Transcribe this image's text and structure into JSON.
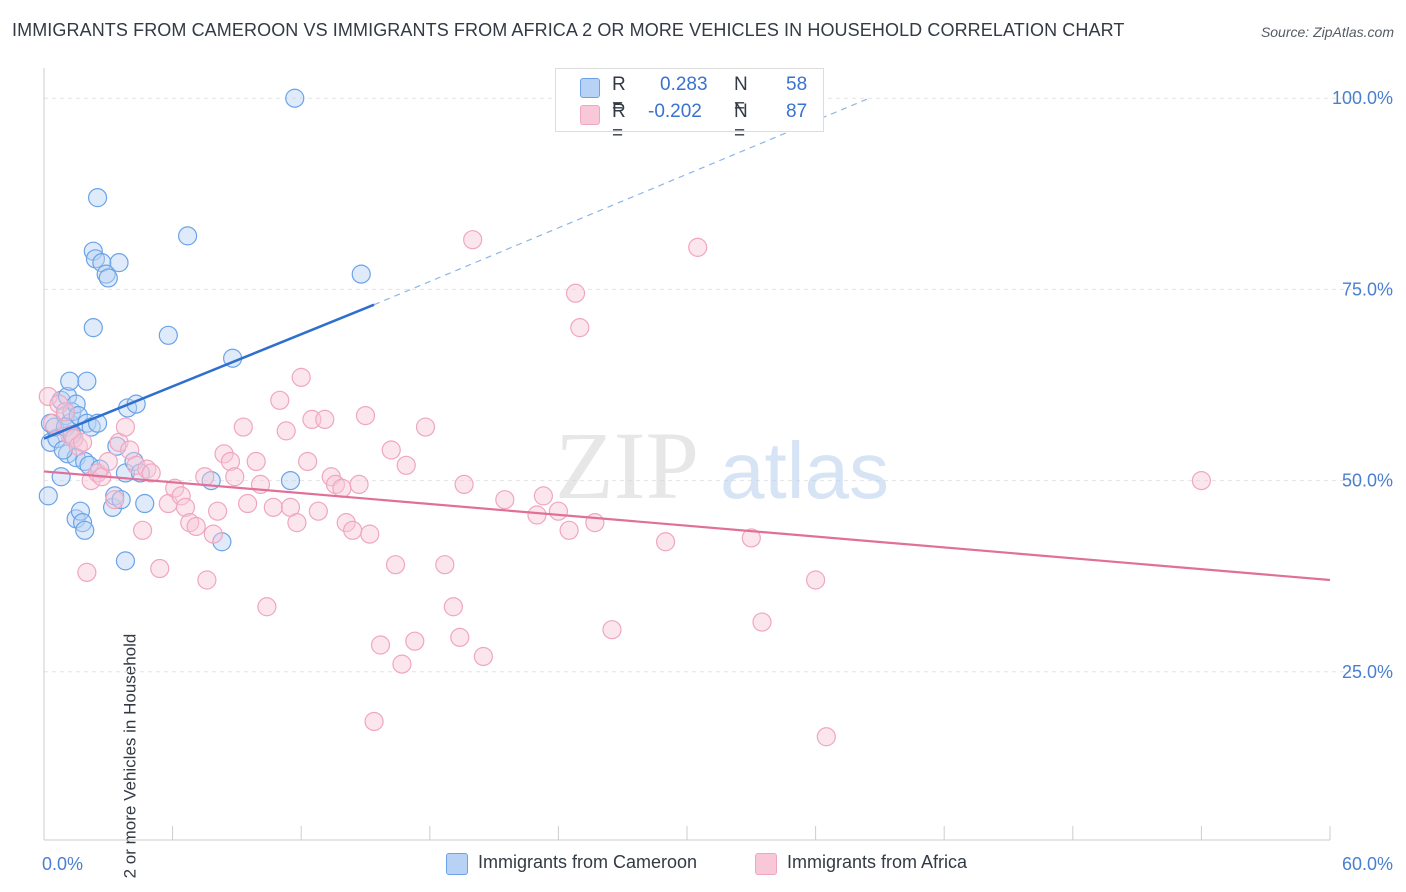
{
  "title": "IMMIGRANTS FROM CAMEROON VS IMMIGRANTS FROM AFRICA 2 OR MORE VEHICLES IN HOUSEHOLD CORRELATION CHART",
  "source": "Source: ZipAtlas.com",
  "watermark": {
    "zip": "ZIP",
    "atlas": "atlas"
  },
  "legend": {
    "rows": [
      {
        "r_label": "R =",
        "r_value": "0.283",
        "n_label": "N =",
        "n_value": "58"
      },
      {
        "r_label": "R =",
        "r_value": "-0.202",
        "n_label": "N =",
        "n_value": "87"
      }
    ]
  },
  "colors": {
    "blue": "#6aa3e8",
    "blue_line": "#2f6fce",
    "pink": "#f0a6bf",
    "pink_line": "#e07099",
    "tick_text": "#4a7fcf",
    "grid": "#e4e4e4"
  },
  "chart_data": {
    "type": "scatter",
    "title": "IMMIGRANTS FROM CAMEROON VS IMMIGRANTS FROM AFRICA 2 OR MORE VEHICLES IN HOUSEHOLD CORRELATION CHART",
    "xlabel": "",
    "ylabel": "2 or more Vehicles in Household",
    "xlim": [
      0,
      60
    ],
    "ylim": [
      3,
      105
    ],
    "x_tick_labels": [
      "0.0%",
      "60.0%"
    ],
    "y_ticks": [
      25,
      50,
      75,
      100
    ],
    "y_tick_labels": [
      "25.0%",
      "50.0%",
      "75.0%",
      "100.0%"
    ],
    "grid": true,
    "legend_position": "top-center",
    "series": [
      {
        "name": "Immigrants from Cameroon",
        "color": "#6aa3e8",
        "trend": {
          "x0": 0,
          "y0": 55.5,
          "x1": 15.4,
          "y1": 73,
          "dashed_to_x": 38.5,
          "dashed_to_y": 100
        },
        "points": [
          [
            0.2,
            48.0
          ],
          [
            0.3,
            55.0
          ],
          [
            0.3,
            57.5
          ],
          [
            0.5,
            57.0
          ],
          [
            0.6,
            55.5
          ],
          [
            0.8,
            60.5
          ],
          [
            0.8,
            50.5
          ],
          [
            1.0,
            58.5
          ],
          [
            1.1,
            53.5
          ],
          [
            1.1,
            61.0
          ],
          [
            1.2,
            57.5
          ],
          [
            1.2,
            63.0
          ],
          [
            1.3,
            59.0
          ],
          [
            1.4,
            55.5
          ],
          [
            1.5,
            60.0
          ],
          [
            1.5,
            53.0
          ],
          [
            1.5,
            45.0
          ],
          [
            1.6,
            58.5
          ],
          [
            1.7,
            46.0
          ],
          [
            1.8,
            44.5
          ],
          [
            1.9,
            52.5
          ],
          [
            1.9,
            43.5
          ],
          [
            2.0,
            57.5
          ],
          [
            2.1,
            52.0
          ],
          [
            2.0,
            63.0
          ],
          [
            2.2,
            57.0
          ],
          [
            2.3,
            70.0
          ],
          [
            2.3,
            80.0
          ],
          [
            2.4,
            79.0
          ],
          [
            2.5,
            87.0
          ],
          [
            2.5,
            57.5
          ],
          [
            2.6,
            51.5
          ],
          [
            2.7,
            78.5
          ],
          [
            2.9,
            77.0
          ],
          [
            3.0,
            76.5
          ],
          [
            3.2,
            46.5
          ],
          [
            3.3,
            48.0
          ],
          [
            3.4,
            54.5
          ],
          [
            3.5,
            78.5
          ],
          [
            3.6,
            47.5
          ],
          [
            3.8,
            39.5
          ],
          [
            3.8,
            51.0
          ],
          [
            3.9,
            59.5
          ],
          [
            4.2,
            52.5
          ],
          [
            4.3,
            60.0
          ],
          [
            4.5,
            51.0
          ],
          [
            4.7,
            47.0
          ],
          [
            5.8,
            69.0
          ],
          [
            6.7,
            82.0
          ],
          [
            7.8,
            50.0
          ],
          [
            8.3,
            42.0
          ],
          [
            8.8,
            66.0
          ],
          [
            11.5,
            50.0
          ],
          [
            11.7,
            100.0
          ],
          [
            14.8,
            77.0
          ],
          [
            1.0,
            57.0
          ],
          [
            1.3,
            56.0
          ],
          [
            0.9,
            54.0
          ]
        ]
      },
      {
        "name": "Immigrants from Africa",
        "color": "#f0a6bf",
        "trend": {
          "x0": 0,
          "y0": 51.2,
          "x1": 60,
          "y1": 37.0
        },
        "points": [
          [
            0.2,
            61.0
          ],
          [
            0.4,
            57.5
          ],
          [
            0.7,
            60.0
          ],
          [
            1.0,
            59.0
          ],
          [
            1.2,
            56.0
          ],
          [
            1.4,
            55.5
          ],
          [
            1.6,
            54.5
          ],
          [
            1.8,
            55.0
          ],
          [
            2.0,
            38.0
          ],
          [
            2.2,
            50.0
          ],
          [
            2.5,
            51.0
          ],
          [
            2.7,
            50.5
          ],
          [
            3.0,
            52.5
          ],
          [
            3.3,
            47.5
          ],
          [
            3.5,
            55.0
          ],
          [
            3.8,
            57.0
          ],
          [
            4.0,
            54.0
          ],
          [
            4.3,
            52.0
          ],
          [
            4.6,
            43.5
          ],
          [
            4.8,
            51.5
          ],
          [
            5.0,
            51.0
          ],
          [
            5.4,
            38.5
          ],
          [
            5.8,
            47.0
          ],
          [
            6.1,
            49.0
          ],
          [
            6.4,
            48.0
          ],
          [
            6.6,
            46.5
          ],
          [
            6.8,
            44.5
          ],
          [
            7.1,
            44.0
          ],
          [
            7.5,
            50.5
          ],
          [
            7.6,
            37.0
          ],
          [
            7.9,
            43.0
          ],
          [
            8.1,
            46.0
          ],
          [
            8.4,
            53.5
          ],
          [
            8.7,
            52.5
          ],
          [
            8.9,
            50.5
          ],
          [
            9.3,
            57.0
          ],
          [
            9.5,
            47.0
          ],
          [
            9.9,
            52.5
          ],
          [
            10.1,
            49.5
          ],
          [
            10.4,
            33.5
          ],
          [
            10.7,
            46.5
          ],
          [
            11.0,
            60.5
          ],
          [
            11.3,
            56.5
          ],
          [
            11.5,
            46.5
          ],
          [
            11.8,
            44.5
          ],
          [
            12.0,
            63.5
          ],
          [
            12.3,
            52.5
          ],
          [
            12.5,
            58.0
          ],
          [
            12.8,
            46.0
          ],
          [
            13.1,
            58.0
          ],
          [
            13.4,
            50.5
          ],
          [
            13.6,
            49.5
          ],
          [
            13.9,
            49.0
          ],
          [
            14.1,
            44.5
          ],
          [
            14.4,
            43.5
          ],
          [
            14.7,
            49.5
          ],
          [
            15.0,
            58.5
          ],
          [
            15.2,
            43.0
          ],
          [
            15.7,
            28.5
          ],
          [
            16.2,
            54.0
          ],
          [
            16.4,
            39.0
          ],
          [
            16.7,
            26.0
          ],
          [
            16.9,
            52.0
          ],
          [
            17.3,
            29.0
          ],
          [
            17.8,
            57.0
          ],
          [
            18.7,
            39.0
          ],
          [
            19.1,
            33.5
          ],
          [
            19.4,
            29.5
          ],
          [
            19.6,
            49.5
          ],
          [
            20.0,
            81.5
          ],
          [
            20.5,
            27.0
          ],
          [
            21.5,
            47.5
          ],
          [
            23.0,
            45.5
          ],
          [
            23.3,
            48.0
          ],
          [
            24.0,
            46.0
          ],
          [
            24.5,
            43.5
          ],
          [
            24.8,
            74.5
          ],
          [
            25.0,
            70.0
          ],
          [
            25.7,
            44.5
          ],
          [
            26.5,
            30.5
          ],
          [
            29.0,
            42.0
          ],
          [
            30.5,
            80.5
          ],
          [
            33.0,
            42.5
          ],
          [
            33.5,
            31.5
          ],
          [
            36.0,
            37.0
          ],
          [
            36.5,
            16.5
          ],
          [
            15.4,
            18.5
          ]
        ],
        "extra_points": [
          [
            54.0,
            50.0
          ]
        ]
      }
    ]
  },
  "bottom_legend": [
    {
      "label": "Immigrants from Cameroon"
    },
    {
      "label": "Immigrants from Africa"
    }
  ]
}
